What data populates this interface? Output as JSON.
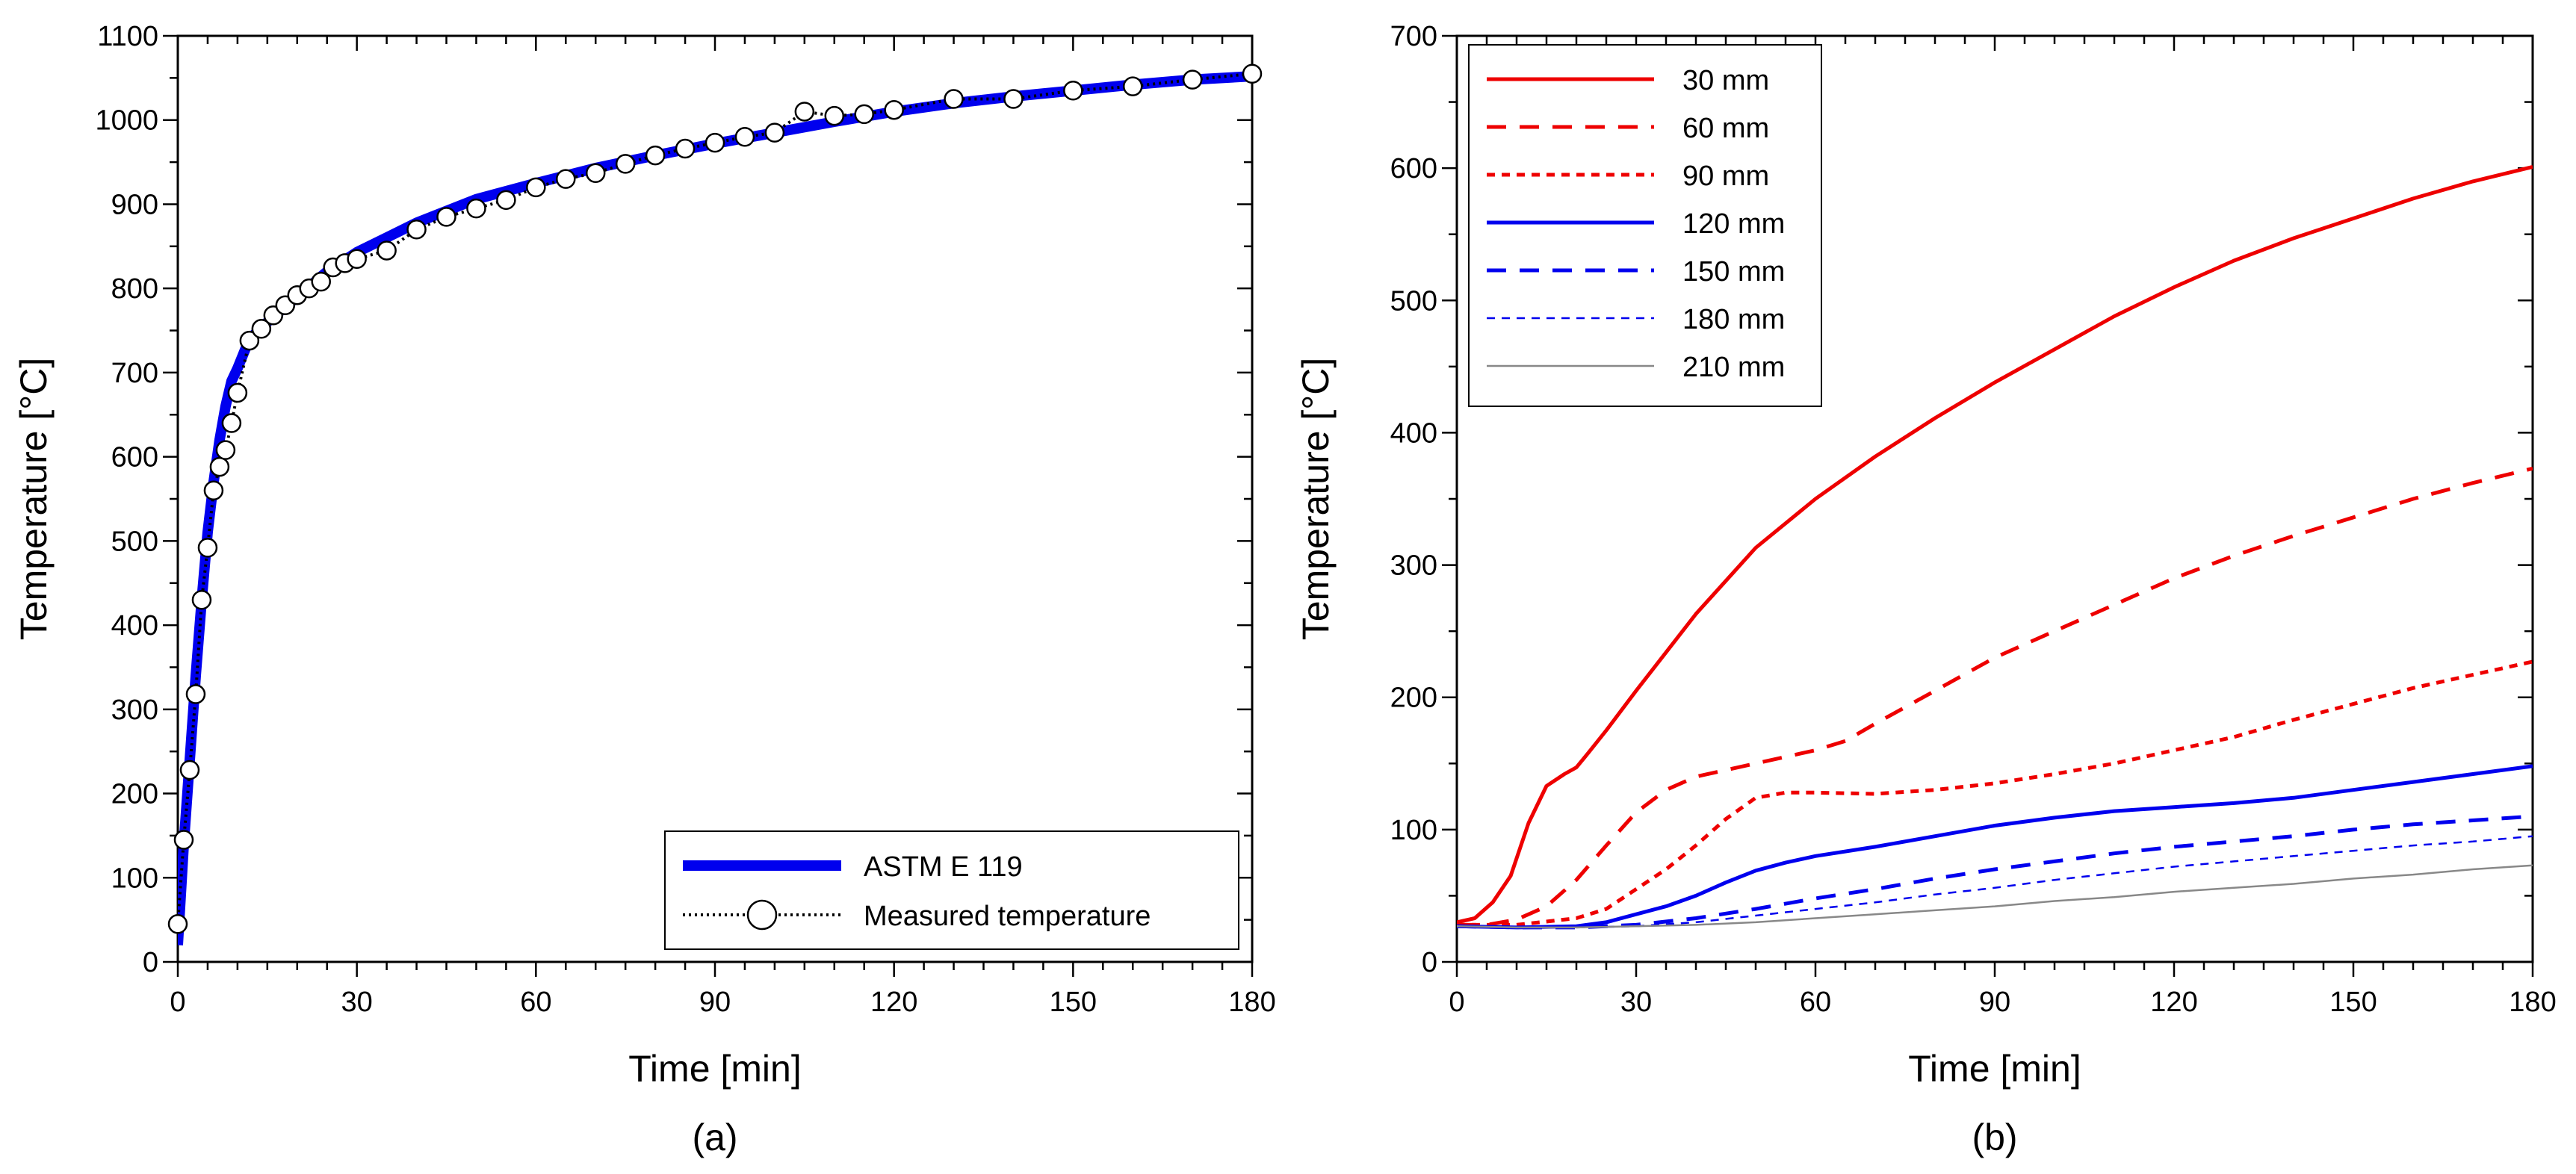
{
  "chart_data": [
    {
      "type": "line",
      "panel_label": "(a)",
      "xlabel": "Time [min]",
      "ylabel": "Temperature [°C]",
      "xlim": [
        0,
        180
      ],
      "ylim": [
        0,
        1100
      ],
      "x_ticks": [
        0,
        30,
        60,
        90,
        120,
        150,
        180
      ],
      "y_ticks": [
        0,
        100,
        200,
        300,
        400,
        500,
        600,
        700,
        800,
        900,
        1000,
        1100
      ],
      "legend_position": "bottom-right",
      "series": [
        {
          "name": "ASTM E 119",
          "style": "solid-thick",
          "color": "#0000ee",
          "x": [
            0,
            1,
            2,
            3,
            4,
            5,
            6,
            7,
            8,
            9,
            10,
            12,
            15,
            20,
            25,
            30,
            40,
            50,
            60,
            70,
            80,
            90,
            100,
            110,
            120,
            130,
            140,
            150,
            160,
            170,
            180
          ],
          "y": [
            20,
            140,
            240,
            340,
            430,
            510,
            570,
            620,
            660,
            690,
            705,
            740,
            760,
            790,
            820,
            843,
            878,
            906,
            925,
            943,
            958,
            972,
            985,
            998,
            1010,
            1020,
            1028,
            1035,
            1042,
            1048,
            1052
          ]
        },
        {
          "name": "Measured temperature",
          "style": "dotted-circles",
          "color": "#000000",
          "x": [
            0,
            1,
            2,
            3,
            4,
            5,
            6,
            7,
            8,
            9,
            10,
            12,
            14,
            16,
            18,
            20,
            22,
            24,
            26,
            28,
            30,
            35,
            40,
            45,
            50,
            55,
            60,
            65,
            70,
            75,
            80,
            85,
            90,
            95,
            100,
            105,
            110,
            115,
            120,
            130,
            140,
            150,
            160,
            170,
            180
          ],
          "y": [
            45,
            145,
            228,
            318,
            430,
            492,
            560,
            588,
            608,
            640,
            676,
            738,
            752,
            768,
            780,
            792,
            800,
            808,
            825,
            830,
            835,
            845,
            870,
            885,
            895,
            905,
            920,
            930,
            937,
            948,
            958,
            966,
            973,
            980,
            985,
            1010,
            1005,
            1007,
            1012,
            1025,
            1025,
            1035,
            1040,
            1048,
            1055
          ]
        }
      ]
    },
    {
      "type": "line",
      "panel_label": "(b)",
      "xlabel": "Time [min]",
      "ylabel": "Temperature [°C]",
      "xlim": [
        0,
        180
      ],
      "ylim": [
        0,
        700
      ],
      "x_ticks": [
        0,
        30,
        60,
        90,
        120,
        150,
        180
      ],
      "y_ticks": [
        0,
        100,
        200,
        300,
        400,
        500,
        600,
        700
      ],
      "legend_position": "top-left",
      "series": [
        {
          "name": "30 mm",
          "color": "#ee0000",
          "dash": "solid",
          "weight": "normal",
          "x": [
            0,
            3,
            6,
            9,
            12,
            15,
            18,
            20,
            22,
            25,
            30,
            40,
            50,
            60,
            70,
            80,
            90,
            100,
            110,
            120,
            130,
            140,
            150,
            160,
            170,
            180
          ],
          "y": [
            30,
            33,
            45,
            65,
            105,
            133,
            142,
            147,
            158,
            175,
            205,
            263,
            313,
            350,
            382,
            411,
            438,
            463,
            488,
            510,
            530,
            547,
            562,
            577,
            590,
            601
          ]
        },
        {
          "name": "60 mm",
          "color": "#ee0000",
          "dash": "dashed",
          "weight": "normal",
          "x": [
            0,
            5,
            10,
            15,
            20,
            25,
            30,
            35,
            40,
            45,
            50,
            55,
            60,
            65,
            70,
            80,
            90,
            100,
            110,
            120,
            130,
            140,
            150,
            160,
            170,
            180
          ],
          "y": [
            28,
            28,
            32,
            42,
            62,
            88,
            113,
            130,
            140,
            145,
            150,
            155,
            160,
            167,
            180,
            205,
            230,
            250,
            270,
            290,
            307,
            322,
            336,
            350,
            362,
            373
          ]
        },
        {
          "name": "90 mm",
          "color": "#ee0000",
          "dash": "dotted",
          "weight": "normal",
          "x": [
            0,
            10,
            20,
            25,
            30,
            35,
            40,
            45,
            50,
            55,
            60,
            70,
            80,
            90,
            100,
            110,
            120,
            130,
            140,
            150,
            160,
            170,
            180
          ],
          "y": [
            28,
            28,
            33,
            40,
            55,
            70,
            88,
            108,
            124,
            128,
            128,
            127,
            130,
            135,
            142,
            150,
            160,
            170,
            183,
            195,
            207,
            217,
            227
          ]
        },
        {
          "name": "120 mm",
          "color": "#0000ee",
          "dash": "solid",
          "weight": "normal",
          "x": [
            0,
            10,
            20,
            25,
            30,
            35,
            40,
            45,
            50,
            55,
            60,
            70,
            80,
            90,
            100,
            110,
            120,
            130,
            140,
            150,
            160,
            170,
            180
          ],
          "y": [
            27,
            26,
            27,
            30,
            36,
            42,
            50,
            60,
            69,
            75,
            80,
            87,
            95,
            103,
            109,
            114,
            117,
            120,
            124,
            130,
            136,
            142,
            148
          ]
        },
        {
          "name": "150 mm",
          "color": "#0000ee",
          "dash": "dashed",
          "weight": "normal",
          "x": [
            0,
            10,
            20,
            30,
            40,
            50,
            60,
            70,
            80,
            90,
            100,
            110,
            120,
            130,
            140,
            150,
            160,
            170,
            180
          ],
          "y": [
            27,
            26,
            26,
            28,
            33,
            40,
            48,
            55,
            63,
            70,
            76,
            82,
            87,
            91,
            95,
            100,
            104,
            107,
            110
          ]
        },
        {
          "name": "180 mm",
          "color": "#0000ee",
          "dash": "dotted",
          "weight": "thin",
          "x": [
            0,
            10,
            20,
            30,
            40,
            50,
            60,
            70,
            80,
            90,
            100,
            110,
            120,
            130,
            140,
            150,
            160,
            170,
            180
          ],
          "y": [
            27,
            26,
            26,
            27,
            30,
            35,
            40,
            45,
            51,
            56,
            62,
            67,
            72,
            76,
            80,
            84,
            88,
            91,
            95
          ]
        },
        {
          "name": "210 mm",
          "color": "#888888",
          "dash": "solid",
          "weight": "thin",
          "x": [
            0,
            10,
            20,
            30,
            40,
            50,
            60,
            70,
            80,
            90,
            100,
            110,
            120,
            130,
            140,
            150,
            160,
            170,
            180
          ],
          "y": [
            27,
            26,
            26,
            27,
            28,
            30,
            33,
            36,
            39,
            42,
            46,
            49,
            53,
            56,
            59,
            63,
            66,
            70,
            73
          ]
        }
      ]
    }
  ]
}
